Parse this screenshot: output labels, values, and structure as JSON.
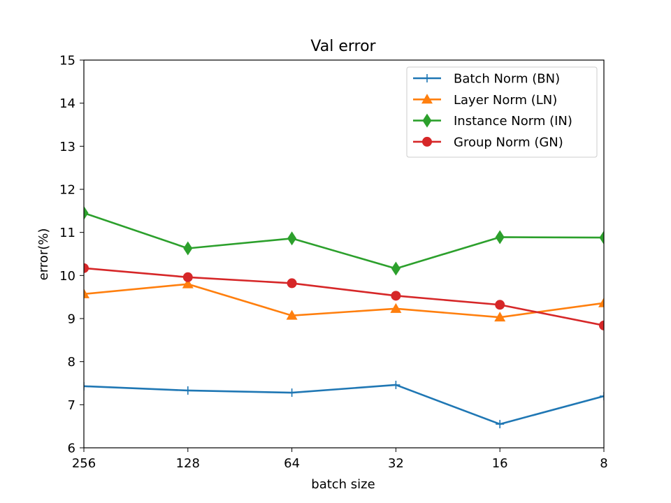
{
  "chart_data": {
    "type": "line",
    "title": "Val error",
    "xlabel": "batch size",
    "ylabel": "error(%)",
    "categories": [
      "256",
      "128",
      "64",
      "32",
      "16",
      "8"
    ],
    "ylim": [
      6,
      15
    ],
    "yticks": [
      6,
      7,
      8,
      9,
      10,
      11,
      12,
      13,
      14,
      15
    ],
    "grid": false,
    "legend_position": "top-right",
    "series": [
      {
        "name": "Batch Norm (BN)",
        "color": "#1f77b4",
        "marker": "plus",
        "values": [
          7.43,
          7.33,
          7.28,
          7.46,
          6.55,
          7.2
        ]
      },
      {
        "name": "Layer Norm (LN)",
        "color": "#ff7f0e",
        "marker": "triangle",
        "values": [
          9.57,
          9.8,
          9.07,
          9.23,
          9.03,
          9.36
        ]
      },
      {
        "name": "Instance Norm (IN)",
        "color": "#2ca02c",
        "marker": "diamond",
        "values": [
          11.45,
          10.63,
          10.86,
          10.16,
          10.89,
          10.88
        ]
      },
      {
        "name": "Group Norm (GN)",
        "color": "#d62728",
        "marker": "circle",
        "values": [
          10.17,
          9.96,
          9.82,
          9.53,
          9.32,
          8.84
        ]
      }
    ]
  }
}
